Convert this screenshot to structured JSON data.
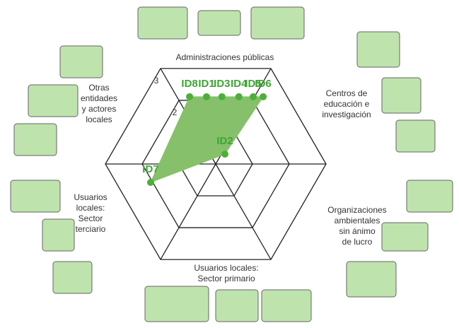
{
  "chart_data": {
    "type": "radar-scatter",
    "categories": [
      [
        "Administraciones públicas"
      ],
      [
        "Centros de",
        "educación e",
        "investigación"
      ],
      [
        "Organizaciones",
        "ambientales",
        "sin ánimo",
        "de lucro"
      ],
      [
        "Usuarios locales:",
        "Sector primario"
      ],
      [
        "Usuarios",
        "locales:",
        "Sector",
        "terciario"
      ],
      [
        "Otras",
        "entidades",
        "y actores",
        "locales"
      ]
    ],
    "rlim": [
      0,
      3
    ],
    "rticks": [
      2,
      3
    ],
    "color": "#4caf3a",
    "fill": "#86c06a",
    "points": [
      {
        "label": "ID8",
        "x": -0.71,
        "y": 1.83
      },
      {
        "label": "ID1",
        "x": -0.25,
        "y": 1.83
      },
      {
        "label": "ID3",
        "x": 0.17,
        "y": 1.83
      },
      {
        "label": "ID4",
        "x": 0.63,
        "y": 1.83
      },
      {
        "label": "ID5",
        "x": 1.02,
        "y": 1.83
      },
      {
        "label": "ID6",
        "x": 1.29,
        "y": 1.83
      },
      {
        "label": "ID2",
        "x": 0.25,
        "y": 0.27
      },
      {
        "label": "ID7",
        "x": -1.77,
        "y": -0.5
      }
    ]
  }
}
